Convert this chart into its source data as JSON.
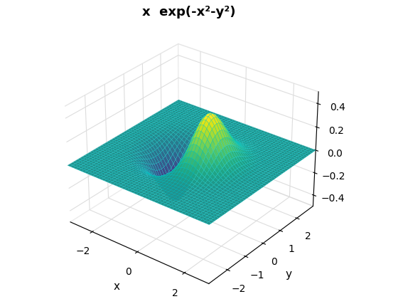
{
  "title": "x  exp(-x²-y²)",
  "xlabel": "x",
  "ylabel": "y",
  "x_range": [
    -3,
    3
  ],
  "y_range": [
    -3,
    3
  ],
  "n_points": 49,
  "colormap": "viridis",
  "elev": 30,
  "azim": -52,
  "xlim": [
    -3,
    3
  ],
  "ylim": [
    -3,
    3
  ],
  "zlim": [
    -0.5,
    0.5
  ],
  "xticks": [
    -2,
    0,
    2
  ],
  "yticks": [
    -2,
    -1,
    0,
    1,
    2
  ],
  "zticks": [
    -0.4,
    -0.2,
    0.0,
    0.2,
    0.4
  ],
  "background_color": "white",
  "title_fontsize": 13,
  "title_fontweight": "bold",
  "edge_color": "#00cccc",
  "edge_linewidth": 0.2
}
